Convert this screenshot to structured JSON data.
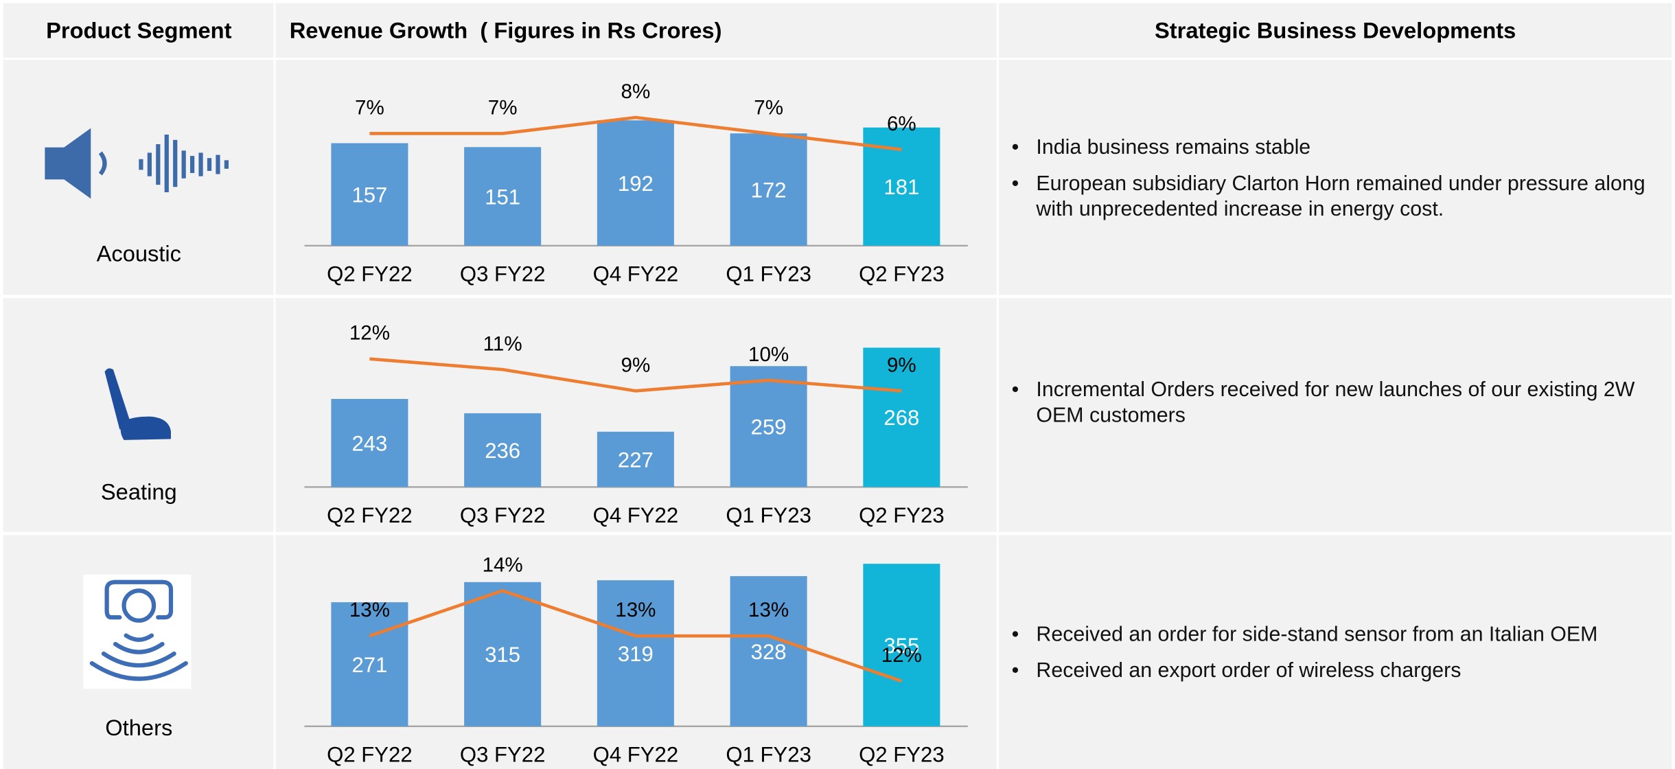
{
  "header": {
    "segment": "Product Segment",
    "revenue": "Revenue Growth  ( Figures in Rs Crores)",
    "developments": "Strategic Business Developments"
  },
  "segments": [
    {
      "name": "Acoustic",
      "bullets": [
        "India business remains stable",
        "European subsidiary Clarton Horn remained under pressure along with unprecedented increase in energy cost."
      ]
    },
    {
      "name": "Seating",
      "bullets": [
        "Incremental Orders received for new launches of our existing 2W OEM customers"
      ]
    },
    {
      "name": "Others",
      "bullets": [
        "Received an order for side-stand sensor from an Italian OEM",
        "Received an export order of wireless chargers"
      ]
    }
  ],
  "chart_data": [
    {
      "type": "bar",
      "categories": [
        "Q2 FY22",
        "Q3 FY22",
        "Q4 FY22",
        "Q1 FY23",
        "Q2 FY23"
      ],
      "ylim": [
        0,
        270
      ],
      "y2lim": [
        0,
        11
      ],
      "series": [
        {
          "type": "bar",
          "colors": [
            "#5b9bd5",
            "#5b9bd5",
            "#5b9bd5",
            "#5b9bd5",
            "#12b5d8"
          ],
          "values": [
            157,
            151,
            192,
            172,
            181
          ]
        },
        {
          "type": "line",
          "axis": "y2",
          "color": "#ed7d31",
          "values": [
            7,
            7,
            8,
            7,
            6
          ],
          "value_labels": [
            "7%",
            "7%",
            "8%",
            "7%",
            "6%"
          ]
        }
      ]
    },
    {
      "type": "bar",
      "categories": [
        "Q2 FY22",
        "Q3 FY22",
        "Q4 FY22",
        "Q1 FY23",
        "Q2 FY23"
      ],
      "ylim": [
        200,
        286
      ],
      "y2lim": [
        0,
        16.5
      ],
      "series": [
        {
          "type": "bar",
          "colors": [
            "#5b9bd5",
            "#5b9bd5",
            "#5b9bd5",
            "#5b9bd5",
            "#12b5d8"
          ],
          "values": [
            243,
            236,
            227,
            259,
            268
          ]
        },
        {
          "type": "line",
          "axis": "y2",
          "color": "#ed7d31",
          "values": [
            12,
            11,
            9,
            10,
            9
          ],
          "value_labels": [
            "12%",
            "11%",
            "9%",
            "10%",
            "9%"
          ]
        }
      ]
    },
    {
      "type": "bar",
      "categories": [
        "Q2 FY22",
        "Q3 FY22",
        "Q4 FY22",
        "Q1 FY23",
        "Q2 FY23"
      ],
      "ylim": [
        0,
        385
      ],
      "y2lim": [
        11,
        14.9
      ],
      "series": [
        {
          "type": "bar",
          "colors": [
            "#5b9bd5",
            "#5b9bd5",
            "#5b9bd5",
            "#5b9bd5",
            "#12b5d8"
          ],
          "values": [
            271,
            315,
            319,
            328,
            355
          ]
        },
        {
          "type": "line",
          "axis": "y2",
          "color": "#ed7d31",
          "values": [
            13,
            14,
            13,
            13,
            12
          ],
          "value_labels": [
            "13%",
            "14%",
            "13%",
            "13%",
            "12%"
          ]
        }
      ]
    }
  ]
}
